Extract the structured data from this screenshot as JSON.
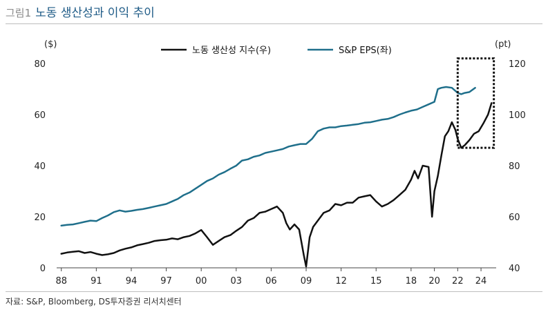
{
  "figure": {
    "number": "그림1",
    "title": "노동 생산성과 이익 추이",
    "source": "자료: S&P, Bloomberg, DS투자증권 리서치센터"
  },
  "chart_data": {
    "type": "line",
    "title": "",
    "left_axis_unit": "($)",
    "right_axis_unit": "(pt)",
    "x_tick_labels": [
      "88",
      "91",
      "94",
      "97",
      "00",
      "03",
      "06",
      "09",
      "12",
      "15",
      "18",
      "20",
      "22",
      "24"
    ],
    "x_tick_years": [
      1988,
      1991,
      1994,
      1997,
      2000,
      2003,
      2006,
      2009,
      2012,
      2015,
      2018,
      2020,
      2022,
      2024
    ],
    "xlim": [
      1987.6,
      2025.3
    ],
    "ylim_left": [
      0,
      80
    ],
    "yticks_left": [
      0,
      20,
      40,
      60,
      80
    ],
    "ylim_right": [
      40,
      120
    ],
    "yticks_right": [
      40,
      60,
      80,
      100,
      120
    ],
    "highlight_box": {
      "x": [
        2022.0,
        2025.1
      ],
      "y_right": [
        87,
        122
      ]
    },
    "legend_position": "top-center",
    "colors": {
      "productivity": "#111111",
      "eps": "#1f6f8b",
      "highlight": "#111111"
    },
    "series": [
      {
        "name": "노동 생산성 지수(우)",
        "axis": "right",
        "color": "#111111",
        "x": [
          1988.0,
          1988.5,
          1989.0,
          1989.5,
          1990.0,
          1990.5,
          1991.0,
          1991.5,
          1992.0,
          1992.5,
          1993.0,
          1993.5,
          1994.0,
          1994.5,
          1995.0,
          1995.5,
          1996.0,
          1996.5,
          1997.0,
          1997.5,
          1998.0,
          1998.5,
          1999.0,
          1999.5,
          2000.0,
          2000.5,
          2001.0,
          2001.5,
          2002.0,
          2002.5,
          2003.0,
          2003.5,
          2004.0,
          2004.5,
          2005.0,
          2005.5,
          2006.0,
          2006.5,
          2007.0,
          2007.3,
          2007.6,
          2008.0,
          2008.4,
          2008.8,
          2009.0,
          2009.3,
          2009.6,
          2010.0,
          2010.5,
          2011.0,
          2011.5,
          2012.0,
          2012.5,
          2013.0,
          2013.5,
          2014.0,
          2014.5,
          2015.0,
          2015.5,
          2016.0,
          2016.5,
          2017.0,
          2017.5,
          2018.0,
          2018.3,
          2018.6,
          2019.0,
          2019.5,
          2019.8,
          2020.0,
          2020.3,
          2020.6,
          2020.9,
          2021.2,
          2021.5,
          2021.8,
          2022.0,
          2022.3,
          2022.6,
          2023.0,
          2023.4,
          2023.8,
          2024.2,
          2024.6,
          2024.9
        ],
        "values": [
          45.5,
          46.0,
          46.3,
          46.5,
          45.8,
          46.2,
          45.5,
          45.0,
          45.3,
          45.8,
          46.8,
          47.5,
          48.0,
          48.8,
          49.3,
          49.8,
          50.5,
          50.8,
          51.0,
          51.5,
          51.2,
          52.0,
          52.5,
          53.5,
          54.8,
          52.0,
          49.0,
          50.5,
          52.0,
          52.8,
          54.5,
          56.0,
          58.5,
          59.5,
          61.5,
          62.0,
          63.0,
          64.0,
          61.5,
          57.5,
          55.0,
          57.0,
          55.0,
          45.0,
          40.5,
          52.0,
          56.0,
          58.5,
          61.5,
          62.5,
          65.0,
          64.5,
          65.5,
          65.5,
          67.5,
          68.0,
          68.5,
          66.0,
          64.0,
          65.0,
          66.5,
          68.5,
          70.5,
          74.5,
          78.0,
          75.0,
          80.0,
          79.5,
          60.0,
          70.0,
          76.0,
          84.0,
          91.5,
          93.5,
          97.0,
          94.0,
          90.5,
          87.0,
          88.0,
          90.0,
          92.5,
          93.5,
          96.5,
          100.0,
          104.5
        ]
      },
      {
        "name": "S&P EPS(좌)",
        "axis": "left",
        "color": "#1f6f8b",
        "x": [
          1988.0,
          1988.5,
          1989.0,
          1989.5,
          1990.0,
          1990.5,
          1991.0,
          1991.5,
          1992.0,
          1992.5,
          1993.0,
          1993.5,
          1994.0,
          1994.5,
          1995.0,
          1995.5,
          1996.0,
          1996.5,
          1997.0,
          1997.5,
          1998.0,
          1998.5,
          1999.0,
          1999.5,
          2000.0,
          2000.5,
          2001.0,
          2001.5,
          2002.0,
          2002.5,
          2003.0,
          2003.5,
          2004.0,
          2004.5,
          2005.0,
          2005.5,
          2006.0,
          2006.5,
          2007.0,
          2007.5,
          2008.0,
          2008.5,
          2009.0,
          2009.5,
          2010.0,
          2010.5,
          2011.0,
          2011.5,
          2012.0,
          2012.5,
          2013.0,
          2013.5,
          2014.0,
          2014.5,
          2015.0,
          2015.5,
          2016.0,
          2016.5,
          2017.0,
          2017.5,
          2018.0,
          2018.5,
          2019.0,
          2019.5,
          2020.0,
          2020.3,
          2020.6,
          2021.0,
          2021.5,
          2022.0,
          2022.3,
          2022.6,
          2023.0,
          2023.5
        ],
        "values": [
          16.5,
          16.8,
          17.0,
          17.5,
          18.0,
          18.5,
          18.3,
          19.5,
          20.5,
          21.8,
          22.5,
          22.0,
          22.3,
          22.7,
          23.0,
          23.5,
          24.0,
          24.5,
          25.0,
          26.0,
          27.0,
          28.5,
          29.5,
          31.0,
          32.5,
          34.0,
          35.0,
          36.5,
          37.5,
          38.8,
          40.0,
          42.0,
          42.5,
          43.5,
          44.0,
          45.0,
          45.5,
          46.0,
          46.5,
          47.5,
          48.0,
          48.5,
          48.5,
          50.5,
          53.5,
          54.5,
          55.0,
          55.0,
          55.5,
          55.7,
          56.0,
          56.3,
          56.8,
          57.0,
          57.5,
          58.0,
          58.3,
          59.0,
          60.0,
          60.8,
          61.5,
          62.0,
          63.0,
          64.0,
          65.0,
          70.0,
          70.5,
          70.8,
          70.5,
          68.5,
          68.0,
          68.5,
          68.8,
          70.5
        ]
      }
    ]
  }
}
